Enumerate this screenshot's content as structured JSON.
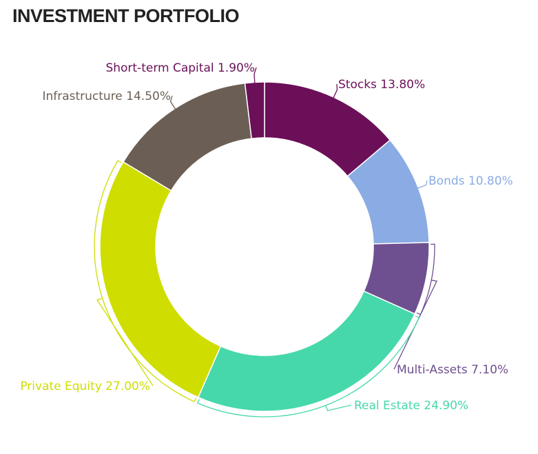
{
  "chart_data": {
    "type": "pie",
    "variant": "donut",
    "title": "INVESTMENT PORTFOLIO",
    "start_angle_deg": 0,
    "direction": "clockwise",
    "slices": [
      {
        "name": "Stocks",
        "value": 13.8,
        "label": "Stocks 13.80%",
        "color": "#6b0f58"
      },
      {
        "name": "Bonds",
        "value": 10.8,
        "label": "Bonds 10.80%",
        "color": "#8aabe3"
      },
      {
        "name": "Multi-Assets",
        "value": 7.1,
        "label": "Multi-Assets 7.10%",
        "color": "#6e4f8f"
      },
      {
        "name": "Real Estate",
        "value": 24.9,
        "label": "Real Estate 24.90%",
        "color": "#46d8ab"
      },
      {
        "name": "Private Equity",
        "value": 27.0,
        "label": "Private Equity 27.00%",
        "color": "#cfdd00"
      },
      {
        "name": "Infrastructure",
        "value": 14.5,
        "label": "Infrastructure 14.50%",
        "color": "#6b5f55"
      },
      {
        "name": "Short-term Capital",
        "value": 1.9,
        "label": "Short-term Capital 1.90%",
        "color": "#6b0f58"
      }
    ]
  }
}
